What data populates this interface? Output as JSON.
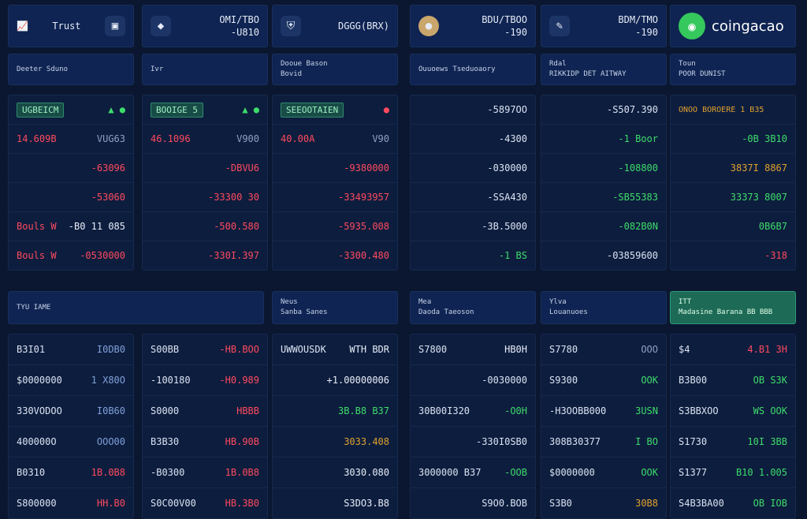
{
  "headers": [
    {
      "icon": "chart-icon",
      "label": "Trust",
      "right": "",
      "extra": "bag-icon"
    },
    {
      "icon": "diamond-icon",
      "label": "",
      "right": "OMI/TBO",
      "right2": "-U810"
    },
    {
      "icon": "shield-icon",
      "label": "",
      "right": "DGGG(BRX)"
    },
    {
      "icon": "coin-icon",
      "label": "",
      "right": "BDU/TBOO",
      "right2": "-190"
    },
    {
      "icon": "feather-icon",
      "label": "",
      "right": "BDM/TMO",
      "right2": "-190"
    },
    {
      "icon": "coingecko-icon",
      "label": "coingacao",
      "right": ""
    }
  ],
  "subheaders": [
    "Deeter Sduno",
    "Ivr",
    "Dooue Bason\nBovid",
    "Ouuoews Tseduoaory",
    "Rdal\nRIKKIDP DET AITWAY",
    "Toun\nPOOR DUNIST"
  ],
  "top_rows": [
    [
      {
        "t": "UGBEICM",
        "tag": true,
        "extra": "▲ ●"
      },
      {
        "t": "BOOIGE 5",
        "tag": true,
        "extra": "▲ ●"
      },
      {
        "t": "SEEOOTAIEN",
        "tag": true,
        "extra": "●"
      },
      {
        "t": "-5897OO"
      },
      {
        "t": "-S507.390"
      },
      {
        "t": "ONOO BOROERE  1 B35"
      }
    ],
    [
      {
        "a": "14.609B",
        "b": "VUG63"
      },
      {
        "a": "46.1096",
        "b": "V900"
      },
      {
        "a": "40.00A",
        "b": "V90"
      },
      {
        "t": "-4300"
      },
      {
        "t": "-1 Boor",
        "c": "green"
      },
      {
        "t": "-0B  3B10",
        "c": "green"
      }
    ],
    [
      {
        "t": "-63096",
        "c": "red"
      },
      {
        "t": "-DBVU6",
        "c": "red"
      },
      {
        "t": "-9380000",
        "c": "red"
      },
      {
        "t": "-030000"
      },
      {
        "t": "-108800",
        "c": "green"
      },
      {
        "t": "3837I 8867",
        "c": "gold"
      }
    ],
    [
      {
        "t": "-53060",
        "c": "red"
      },
      {
        "t": "-33300 30",
        "c": "red"
      },
      {
        "t": "-33493957",
        "c": "red"
      },
      {
        "t": "-SSA430"
      },
      {
        "t": "-SB55383",
        "c": "green"
      },
      {
        "t": "33373 8007",
        "c": "green"
      }
    ],
    [
      {
        "a": "Bouls W",
        "b": "-B0 11 085"
      },
      {
        "t": "-500.580",
        "c": "red"
      },
      {
        "t": "-5935.008",
        "c": "red"
      },
      {
        "t": "-3B.5000"
      },
      {
        "t": "-082B0N",
        "c": "green"
      },
      {
        "t": "0B6B7",
        "c": "green"
      }
    ],
    [
      {
        "a": "Bouls W",
        "b": "-0530000"
      },
      {
        "t": "-330I.397",
        "c": "red"
      },
      {
        "t": "-3300.480",
        "c": "red"
      },
      {
        "t": "-1 BS",
        "c": "green"
      },
      {
        "t": "-03859600"
      },
      {
        "t": "-318",
        "c": "red"
      }
    ]
  ],
  "sub2": [
    "TYU IAME",
    "Neus\nSanba Sanes",
    "Mea\nDaoda Taeoson",
    "Ylva\nLouanuoes",
    "ITT\nMadasine Barana  BB BBB"
  ],
  "bottom_rows": [
    [
      {
        "a": "B3I01",
        "b": "I0DB0",
        "bc": "blue"
      },
      {
        "a": "S00BB",
        "b": "-HB.BOO",
        "bc": "red"
      },
      {
        "a": "UWWOUSDK",
        "b": "WTH BDR",
        "bc": "white"
      },
      {
        "a": "S7800",
        "b": "HB0H",
        "bc": "white"
      },
      {
        "a": "S7780",
        "b": "OOO",
        "bc": "muted"
      },
      {
        "a": "$4",
        "b": "4.B1  3H",
        "bc": "red"
      }
    ],
    [
      {
        "a": "$0000000",
        "b": "1 X80O",
        "bc": "blue"
      },
      {
        "a": "-100180",
        "b": "-H0.989",
        "bc": "red"
      },
      {
        "a": "",
        "b": "+1.00000006",
        "bc": "white"
      },
      {
        "a": "",
        "b": "-0030000",
        "bc": "white"
      },
      {
        "a": "S9300",
        "b": "OOK",
        "bc": "green"
      },
      {
        "a": "B3B00",
        "b": "OB  S3K",
        "bc": "green"
      }
    ],
    [
      {
        "a": "330VODOO",
        "b": "I0B60",
        "bc": "blue"
      },
      {
        "a": "S0000",
        "b": "HBBB",
        "bc": "red"
      },
      {
        "a": "",
        "b": "3B.B8 B37",
        "bc": "green"
      },
      {
        "a": "30B00I320",
        "b": "-O0H",
        "bc": "green"
      },
      {
        "a": "-H3OOBB000",
        "b": "3USN",
        "bc": "green"
      },
      {
        "a": "S3BBXOO",
        "b": "WS  OOK",
        "bc": "green"
      }
    ],
    [
      {
        "a": "400000O",
        "b": "OOO00",
        "bc": "blue"
      },
      {
        "a": "B3B30",
        "b": "HB.90B",
        "bc": "red"
      },
      {
        "a": "",
        "b": "3033.408",
        "bc": "gold"
      },
      {
        "a": "",
        "b": "-330I0SB0",
        "bc": "white"
      },
      {
        "a": "308B30377",
        "b": "I BO",
        "bc": "green"
      },
      {
        "a": "S1730",
        "b": "10I  3BB",
        "bc": "green"
      }
    ],
    [
      {
        "a": "B0310",
        "b": "1B.0B8",
        "bc": "red"
      },
      {
        "a": "-B0300",
        "b": "1B.0B8",
        "bc": "red"
      },
      {
        "a": "",
        "b": "3030.080",
        "bc": "white"
      },
      {
        "a": "3000000 B37",
        "b": "-OOB",
        "bc": "green"
      },
      {
        "a": "$0000000",
        "b": "OOK",
        "bc": "green"
      },
      {
        "a": "S1377",
        "b": "B10  1.005",
        "bc": "green"
      }
    ],
    [
      {
        "a": "S800000",
        "b": "HH.B0",
        "bc": "red"
      },
      {
        "a": "S0C00V00",
        "b": "HB.3B0",
        "bc": "red"
      },
      {
        "a": "",
        "b": "S3DO3.B8",
        "bc": "white"
      },
      {
        "a": "",
        "b": "S9O0.BOB",
        "bc": "white"
      },
      {
        "a": "S3B0",
        "b": "30B8",
        "bc": "gold"
      },
      {
        "a": "S4B3BA00",
        "b": "OB  IOB",
        "bc": "green"
      }
    ]
  ],
  "colors": {
    "bg": "#0b1730",
    "panel": "#0d1d3e",
    "header": "#0f2452",
    "red": "#ff4a5e",
    "green": "#3ddc6a",
    "accent": "#35c85d"
  }
}
